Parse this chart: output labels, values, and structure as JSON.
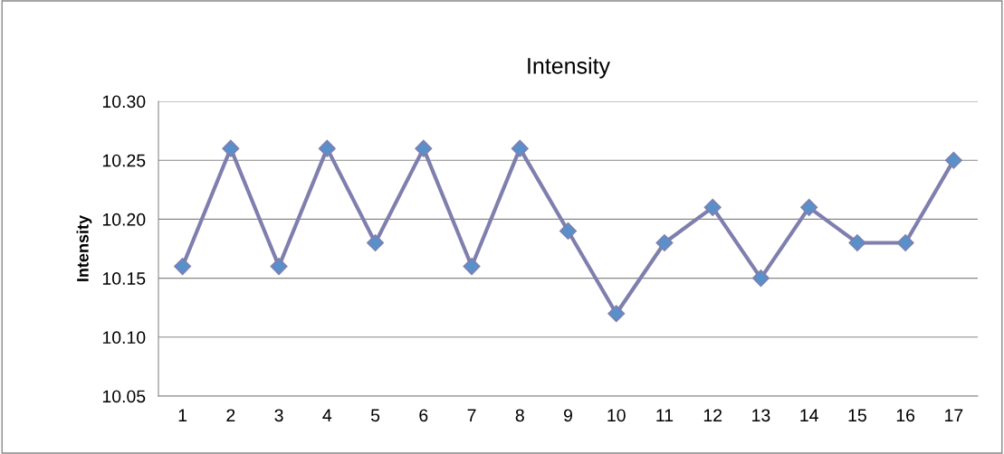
{
  "chart_data": {
    "type": "line",
    "title": "Intensity",
    "ylabel": "Intensity",
    "categories": [
      "1",
      "2",
      "3",
      "4",
      "5",
      "6",
      "7",
      "8",
      "9",
      "10",
      "11",
      "12",
      "13",
      "14",
      "15",
      "16",
      "17"
    ],
    "series": [
      {
        "color": "#7f7fae",
        "colors": [
          "#5b8fc9",
          "#5b8fc9",
          "#5b8fc9",
          "#5b8fc9",
          "#5b8fc9",
          "#5b8fc9",
          "#5b8fc9",
          "#5b8fc9",
          "#5b8fc9",
          "#5b8fc9",
          "#5b8fc9",
          "#5b8fc9",
          "#5b8fc9",
          "#5b8fc9",
          "#5b8fc9",
          "#5b8fc9",
          "#5b8fc9"
        ],
        "values": [
          10.16,
          10.26,
          10.16,
          10.26,
          10.18,
          10.26,
          10.16,
          10.26,
          10.19,
          10.12,
          10.18,
          10.21,
          10.15,
          10.21,
          10.18,
          10.18,
          10.25
        ]
      }
    ],
    "ylim": [
      10.05,
      10.3
    ],
    "yticks": [
      {
        "value": 10.05,
        "label": "10.05"
      },
      {
        "value": 10.1,
        "label": "10.10"
      },
      {
        "value": 10.15,
        "label": "10.15"
      },
      {
        "value": 10.2,
        "label": "10.20"
      },
      {
        "value": 10.25,
        "label": "10.25"
      },
      {
        "value": 10.3,
        "label": "10.30"
      }
    ],
    "grid": "y",
    "marker": "diamond",
    "line_style": "solid"
  }
}
